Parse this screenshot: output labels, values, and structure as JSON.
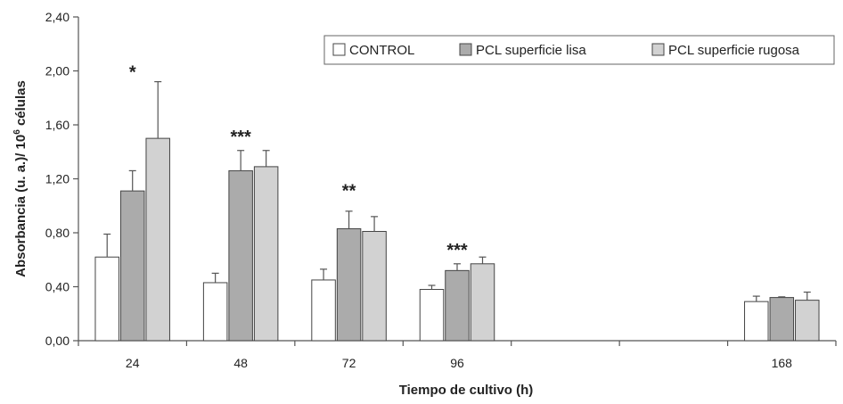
{
  "chart_data": {
    "type": "bar",
    "title": "",
    "xlabel": "Tiempo de cultivo (h)",
    "ylabel_main": "Absorbancia (u. a.)/ 10",
    "ylabel_sup": "6",
    "ylabel_tail": " células",
    "ylim": [
      0,
      2.4
    ],
    "yticks": [
      0,
      0.4,
      0.8,
      1.2,
      1.6,
      2.0,
      2.4
    ],
    "ytick_labels": [
      "0,00",
      "0,40",
      "0,80",
      "1,20",
      "1,60",
      "2,00",
      "2,40"
    ],
    "categories": [
      "24",
      "48",
      "72",
      "96",
      "168"
    ],
    "series": [
      {
        "name": "CONTROL",
        "color": "#ffffff",
        "values": [
          0.62,
          0.43,
          0.45,
          0.38,
          0.29
        ],
        "errors": [
          0.17,
          0.07,
          0.08,
          0.03,
          0.04
        ]
      },
      {
        "name": "PCL superficie lisa",
        "color": "#ababab",
        "values": [
          1.11,
          1.26,
          0.83,
          0.52,
          0.32
        ],
        "errors": [
          0.15,
          0.15,
          0.13,
          0.05,
          0.005
        ]
      },
      {
        "name": "PCL superficie rugosa",
        "color": "#d2d2d2",
        "values": [
          1.5,
          1.29,
          0.81,
          0.57,
          0.3
        ],
        "errors": [
          0.42,
          0.12,
          0.11,
          0.05,
          0.06
        ]
      }
    ],
    "significance": [
      {
        "category": "24",
        "label": "*",
        "y": 2.0
      },
      {
        "category": "48",
        "label": "***",
        "y": 1.52
      },
      {
        "category": "72",
        "label": "**",
        "y": 1.12
      },
      {
        "category": "96",
        "label": "***",
        "y": 0.68
      }
    ],
    "legend_position": "top-right",
    "grid": false
  }
}
